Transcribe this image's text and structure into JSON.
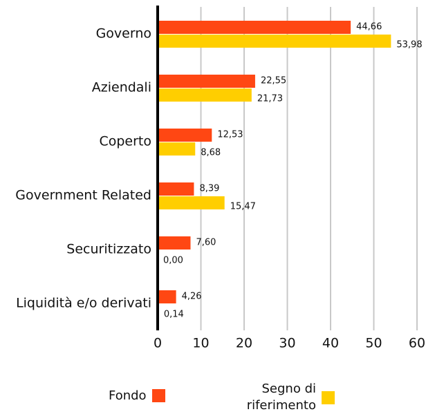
{
  "chart_data": {
    "type": "barh",
    "categories": [
      "Governo",
      "Aziendali",
      "Coperto",
      "Government Related",
      "Securitizzato",
      "Liquidità e/o derivati"
    ],
    "series": [
      {
        "name": "Fondo",
        "color": "#ff4713",
        "values": [
          44.66,
          22.55,
          12.53,
          8.39,
          7.6,
          4.26
        ],
        "value_labels": [
          "44,66",
          "22,55",
          "12,53",
          "8,39",
          "7,60",
          "4,26"
        ]
      },
      {
        "name": "Segno di riferimento",
        "color": "#ffce00",
        "values": [
          53.98,
          21.73,
          8.68,
          15.47,
          0.0,
          0.14
        ],
        "value_labels": [
          "53,98",
          "21,73",
          "8,68",
          "15,47",
          "0,00",
          "0,14"
        ]
      }
    ],
    "xlim": [
      0,
      60
    ],
    "xticks": [
      0,
      10,
      20,
      30,
      40,
      50,
      60
    ],
    "grid": true
  }
}
